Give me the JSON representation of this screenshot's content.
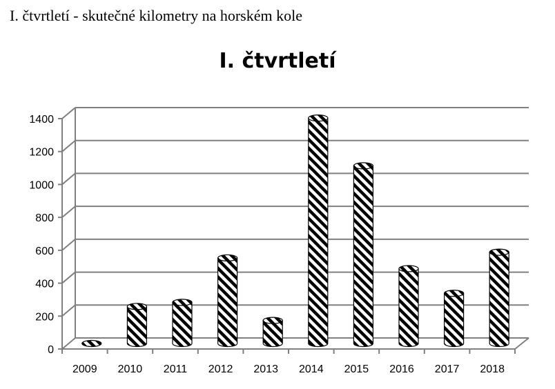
{
  "page": {
    "heading": "I. čtvrtletí - skutečné kilometry na horském kole"
  },
  "chart_data": {
    "type": "bar",
    "title": "I. čtvrtletí",
    "xlabel": "",
    "ylabel": "",
    "categories": [
      "2009",
      "2010",
      "2011",
      "2012",
      "2013",
      "2014",
      "2015",
      "2016",
      "2017",
      "2018"
    ],
    "values": [
      0,
      225,
      250,
      520,
      140,
      1370,
      1080,
      455,
      305,
      555
    ],
    "ylim": [
      0,
      1400
    ],
    "yticks": [
      "0",
      "200",
      "400",
      "600",
      "800",
      "1000",
      "1200",
      "1400"
    ],
    "grid": true,
    "legend": "none",
    "style": "3d-cylinder-hatched",
    "colors": {
      "bar_stripe": "#000000",
      "bar_base": "#ffffff",
      "grid": "#7f7f7f"
    }
  }
}
